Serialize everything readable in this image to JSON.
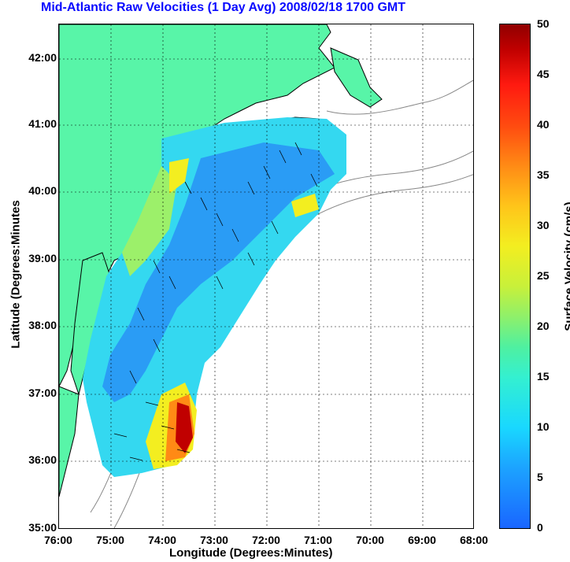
{
  "title": "Mid-Atlantic Raw Velocities (1 Day Avg) 2008/02/18 1700 GMT",
  "xlabel": "Longitude (Degrees:Minutes)",
  "ylabel": "Latitude (Degrees:Minutes",
  "x_ticks": [
    "76:00",
    "75:00",
    "74:00",
    "73:00",
    "72:00",
    "71:00",
    "70:00",
    "69:00",
    "68:00"
  ],
  "y_ticks": [
    "42:00",
    "41:00",
    "40:00",
    "39:00",
    "38:00",
    "37:00",
    "36:00",
    "35:00"
  ],
  "colorbar": {
    "label": "Surface Velocity (cm/s)",
    "ticks": [
      "50",
      "45",
      "40",
      "35",
      "30",
      "25",
      "20",
      "15",
      "10",
      "5",
      "0"
    ]
  },
  "colors": {
    "land": "#58f5a8",
    "title": "#0a0aff",
    "high_velocity": "#c00000",
    "mid_velocity": "#f3ee20",
    "low_velocity": "#1ca3ff"
  }
}
